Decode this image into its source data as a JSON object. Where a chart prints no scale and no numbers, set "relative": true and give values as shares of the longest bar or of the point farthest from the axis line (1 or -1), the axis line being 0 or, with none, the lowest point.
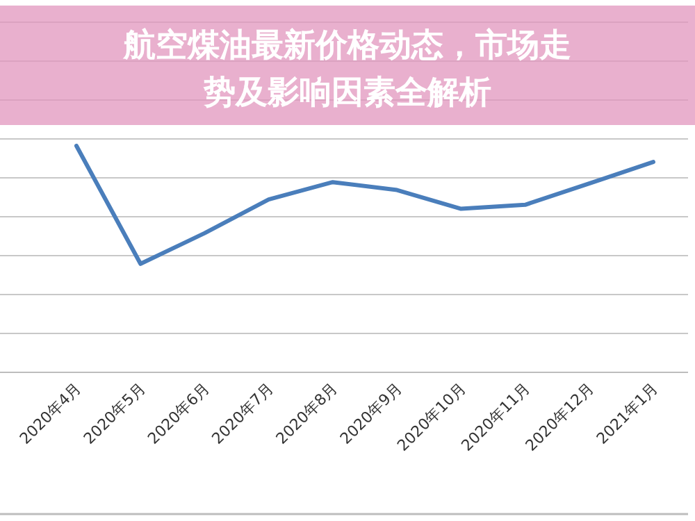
{
  "chart_data": {
    "type": "line",
    "title": "航空煤油最新价格动态，市场走势及影响因素全解析",
    "relative": true,
    "grid": "y",
    "categories": [
      "2020年4月",
      "2020年5月",
      "2020年6月",
      "2020年7月",
      "2020年8月",
      "2020年9月",
      "2020年10月",
      "2020年11月",
      "2020年12月",
      "2021年1月"
    ],
    "series": [
      {
        "color": "#4a7ebb",
        "values": [
          1,
          0.479,
          0.615,
          0.763,
          0.84,
          0.805,
          0.722,
          0.74,
          0.834,
          0.929
        ]
      }
    ]
  }
}
